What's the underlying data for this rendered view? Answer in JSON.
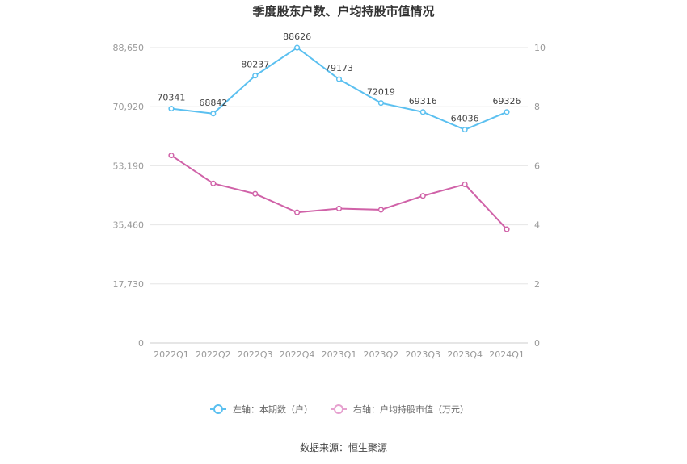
{
  "chart_data": {
    "type": "line",
    "title": "季度股东户数、户均持股市值情况",
    "categories": [
      "2022Q1",
      "2022Q2",
      "2022Q3",
      "2022Q4",
      "2023Q1",
      "2023Q2",
      "2023Q3",
      "2023Q4",
      "2024Q1"
    ],
    "left_axis": {
      "ticks": [
        "0",
        "17,730",
        "35,460",
        "53,190",
        "70,920",
        "88,650"
      ],
      "ylim": [
        0,
        88650
      ]
    },
    "right_axis": {
      "ticks": [
        "0",
        "2",
        "4",
        "6",
        "8",
        "10"
      ],
      "ylim": [
        0,
        10
      ]
    },
    "series": [
      {
        "name": "左轴：本期数（户）",
        "axis": "left",
        "color": "#5bc0f0",
        "values": [
          70341,
          68842,
          80237,
          88626,
          79173,
          72019,
          69316,
          64036,
          69326
        ],
        "labels": [
          "70341",
          "68842",
          "80237",
          "88626",
          "79173",
          "72019",
          "69316",
          "64036",
          "69326"
        ]
      },
      {
        "name": "右轴：户均持股市值（万元）",
        "axis": "right",
        "color": "#d062a8",
        "values": [
          6.35,
          5.4,
          5.05,
          4.42,
          4.55,
          4.51,
          4.98,
          5.37,
          3.85
        ]
      }
    ],
    "legend_position": "bottom",
    "grid": true,
    "source": "数据来源：恒生聚源"
  }
}
